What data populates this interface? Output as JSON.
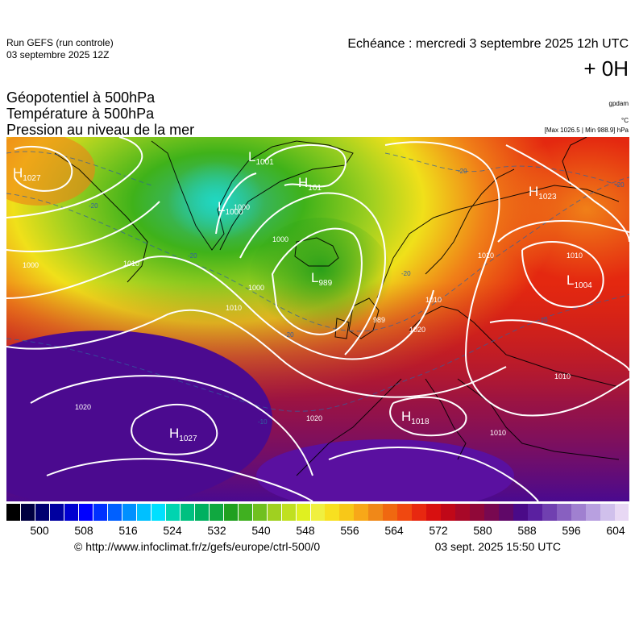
{
  "header": {
    "run_line1": "Run GEFS (run controle)",
    "run_line2": "03 septembre 2025 12Z",
    "echeance": "Echéance : mercredi 3 septembre 2025 12h UTC",
    "hour": "+ 0H"
  },
  "titles": {
    "line1": "Géopotentiel à 500hPa",
    "line2": "Température à 500hPa",
    "line3": "Pression au niveau de la mer"
  },
  "units": {
    "geopotential": "gpdam",
    "temperature": "°C",
    "pressure": "[Max 1026.5 | Min 988.9] hPa"
  },
  "map": {
    "pressure_centers": [
      {
        "type": "H",
        "value": "1027",
        "pos": "far-west-north"
      },
      {
        "type": "L",
        "value": "1001",
        "pos": "north-greenland"
      },
      {
        "type": "H",
        "value": "101",
        "pos": "north-greenland-sea"
      },
      {
        "type": "L",
        "value": "1000",
        "pos": "greenland"
      },
      {
        "type": "L",
        "value": "989",
        "pos": "iceland-south"
      },
      {
        "type": "H",
        "value": "1023",
        "pos": "scandinavia-north-east"
      },
      {
        "type": "L",
        "value": "1004",
        "pos": "russia"
      },
      {
        "type": "H",
        "value": "1018",
        "pos": "mediterranean"
      },
      {
        "type": "H",
        "value": "1027",
        "pos": "azores"
      }
    ],
    "isobar_labels": [
      "1000",
      "1000",
      "1000",
      "1010",
      "1010",
      "1020",
      "1010",
      "1010",
      "1020",
      "1020",
      "1010",
      "989",
      "1010",
      "1000",
      "1010"
    ],
    "temperature_labels": [
      "-20",
      "-20",
      "-20",
      "-20",
      "-20",
      "-20",
      "-10",
      "-10"
    ],
    "colors": {
      "ocean_warm": "#4b0a8f",
      "green": "#3fb21a",
      "yellow": "#f0e01a",
      "orange": "#f08018",
      "red": "#e42810",
      "isobar": "#ffffff",
      "coast": "#000000"
    }
  },
  "colorbar": {
    "ticks": [
      "500",
      "508",
      "516",
      "524",
      "532",
      "540",
      "548",
      "556",
      "564",
      "572",
      "580",
      "588",
      "596",
      "604"
    ],
    "colors": [
      "#000000",
      "#000040",
      "#000070",
      "#0000a0",
      "#0000d0",
      "#0000ff",
      "#0030ff",
      "#0060ff",
      "#0090ff",
      "#00c0ff",
      "#00e0ff",
      "#00d4b0",
      "#00c080",
      "#00b060",
      "#10a840",
      "#20a020",
      "#40b020",
      "#70c020",
      "#a0d020",
      "#c0e020",
      "#e0f020",
      "#f0f040",
      "#f8e020",
      "#f8c818",
      "#f8a818",
      "#f08818",
      "#f06810",
      "#f04810",
      "#e82810",
      "#d81010",
      "#c00818",
      "#a80828",
      "#900838",
      "#780850",
      "#600868",
      "#4a0a88",
      "#5a20a0",
      "#7040b0",
      "#8860c0",
      "#a080d0",
      "#b8a0e0",
      "#d0c0ec",
      "#e8d8f4"
    ]
  },
  "footer": {
    "credit": "© http://www.infoclimat.fr/z/gefs/europe/ctrl-500/0",
    "timestamp": "03 sept. 2025 15:50 UTC"
  }
}
